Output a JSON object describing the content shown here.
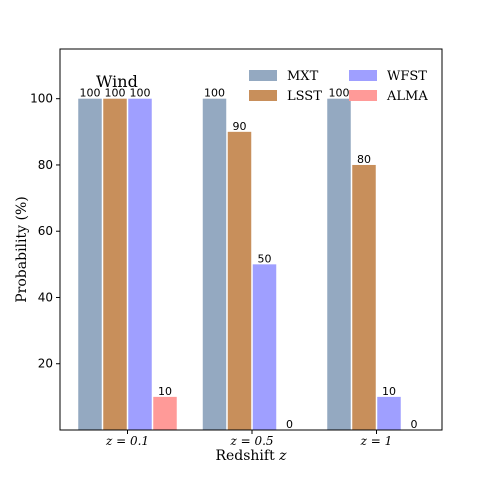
{
  "chart_data": {
    "type": "bar",
    "annotation": "Wind",
    "xlabel": "Redshift z",
    "ylabel": "Probability (%)",
    "categories": [
      "z = 0.1",
      "z = 0.5",
      "z = 1"
    ],
    "ylim": [
      0,
      115
    ],
    "yticks": [
      20,
      40,
      60,
      80,
      100
    ],
    "grid": false,
    "legend_position": "top-right",
    "series": [
      {
        "name": "MXT",
        "color": "#94a9c1",
        "values": [
          100,
          100,
          100
        ]
      },
      {
        "name": "LSST",
        "color": "#c88f5b",
        "values": [
          100,
          90,
          80
        ]
      },
      {
        "name": "WFST",
        "color": "#9f9fff",
        "values": [
          100,
          50,
          10
        ]
      },
      {
        "name": "ALMA",
        "color": "#ff9a98",
        "values": [
          10,
          0,
          0
        ]
      }
    ]
  }
}
